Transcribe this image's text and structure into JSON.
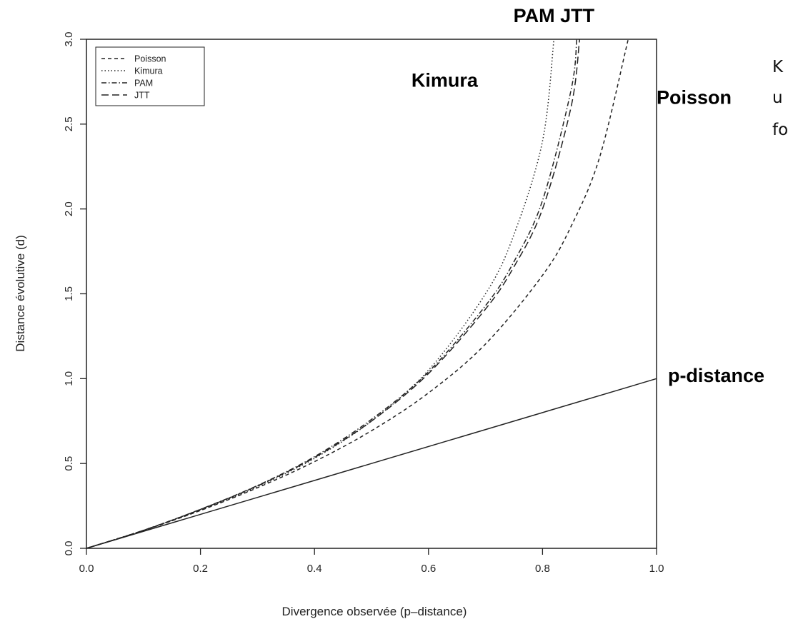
{
  "chart_data": {
    "type": "line",
    "title": "",
    "xlabel": "Divergence observée (p–distance)",
    "ylabel": "Distance évolutive (d)",
    "xlim": [
      0.0,
      1.0
    ],
    "ylim": [
      0.0,
      3.0
    ],
    "x_ticks": [
      "0.0",
      "0.2",
      "0.4",
      "0.6",
      "0.8",
      "1.0"
    ],
    "y_ticks": [
      "0.0",
      "0.5",
      "1.0",
      "1.5",
      "2.0",
      "2.5",
      "3.0"
    ],
    "legend_position": "top-left",
    "legend": [
      {
        "label": "Poisson",
        "dash": "dashed"
      },
      {
        "label": "Kimura",
        "dash": "dotted"
      },
      {
        "label": "PAM",
        "dash": "dashdot"
      },
      {
        "label": "JTT",
        "dash": "longdash"
      }
    ],
    "series": [
      {
        "name": "p-distance",
        "style": "solid",
        "x": [
          0.0,
          1.0
        ],
        "y": [
          0.0,
          1.0
        ]
      },
      {
        "name": "Poisson",
        "style": "dashed",
        "x": [
          0.0,
          0.1,
          0.2,
          0.3,
          0.4,
          0.5,
          0.6,
          0.7,
          0.8,
          0.85,
          0.9,
          0.95
        ],
        "y": [
          0.0,
          0.105,
          0.223,
          0.357,
          0.511,
          0.693,
          0.916,
          1.204,
          1.609,
          1.897,
          2.303,
          2.996
        ]
      },
      {
        "name": "Kimura",
        "style": "dotted",
        "x": [
          0.0,
          0.1,
          0.2,
          0.3,
          0.4,
          0.5,
          0.6,
          0.7,
          0.75,
          0.8,
          0.82
        ],
        "y": [
          0.0,
          0.106,
          0.225,
          0.363,
          0.53,
          0.75,
          1.05,
          1.5,
          1.85,
          2.4,
          3.0
        ]
      },
      {
        "name": "PAM",
        "style": "dashdot",
        "x": [
          0.0,
          0.1,
          0.2,
          0.3,
          0.4,
          0.5,
          0.6,
          0.7,
          0.75,
          0.8,
          0.85,
          0.86
        ],
        "y": [
          0.0,
          0.106,
          0.23,
          0.37,
          0.54,
          0.76,
          1.04,
          1.43,
          1.69,
          2.05,
          2.7,
          3.0
        ]
      },
      {
        "name": "JTT",
        "style": "longdash",
        "x": [
          0.0,
          0.1,
          0.2,
          0.3,
          0.4,
          0.5,
          0.6,
          0.7,
          0.75,
          0.8,
          0.85,
          0.865
        ],
        "y": [
          0.0,
          0.106,
          0.229,
          0.368,
          0.535,
          0.75,
          1.03,
          1.41,
          1.66,
          2.0,
          2.6,
          3.0
        ]
      }
    ],
    "annotations": [
      {
        "text": "PAM JTT",
        "x": 0.82,
        "y": 3.1
      },
      {
        "text": "Kimura",
        "x": 0.57,
        "y": 2.72
      },
      {
        "text": "Poisson",
        "x": 1.0,
        "y": 2.62
      },
      {
        "text": "p-distance",
        "x": 1.02,
        "y": 0.98
      }
    ]
  },
  "side_text": [
    "K",
    "u",
    "fo"
  ]
}
